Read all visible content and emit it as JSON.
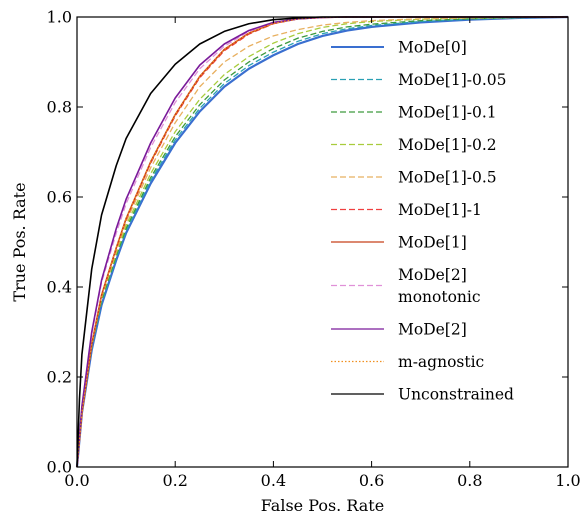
{
  "chart_data": {
    "type": "line",
    "xlabel": "False Pos. Rate",
    "ylabel": "True Pos. Rate",
    "xlim": [
      0.0,
      1.0
    ],
    "ylim": [
      0.0,
      1.0
    ],
    "xticks": [
      "0.0",
      "0.2",
      "0.4",
      "0.6",
      "0.8",
      "1.0"
    ],
    "yticks": [
      "0.0",
      "0.2",
      "0.4",
      "0.6",
      "0.8",
      "1.0"
    ],
    "grid": false,
    "legend_position": "lower-right",
    "series": [
      {
        "name": "MoDe[0]",
        "label_lines": [
          "MoDe[0]"
        ],
        "color": "#3a6fd0",
        "dash": "solid",
        "width": 2.2,
        "x": [
          0,
          0.01,
          0.03,
          0.05,
          0.08,
          0.1,
          0.15,
          0.2,
          0.25,
          0.3,
          0.35,
          0.4,
          0.45,
          0.5,
          0.55,
          0.6,
          0.7,
          0.8,
          0.9,
          1.0
        ],
        "y": [
          0,
          0.12,
          0.26,
          0.36,
          0.46,
          0.52,
          0.63,
          0.72,
          0.79,
          0.845,
          0.885,
          0.915,
          0.94,
          0.958,
          0.97,
          0.978,
          0.988,
          0.994,
          0.998,
          1.0
        ]
      },
      {
        "name": "MoDe[1]-0.05",
        "label_lines": [
          "MoDe[1]-0.05"
        ],
        "color": "#2aa0b4",
        "dash": "dashed",
        "width": 1.3,
        "x": [
          0,
          0.01,
          0.03,
          0.05,
          0.08,
          0.1,
          0.15,
          0.2,
          0.25,
          0.3,
          0.35,
          0.4,
          0.45,
          0.5,
          0.55,
          0.6,
          0.7,
          0.8,
          0.9,
          1.0
        ],
        "y": [
          0,
          0.12,
          0.265,
          0.365,
          0.465,
          0.525,
          0.637,
          0.727,
          0.797,
          0.852,
          0.892,
          0.922,
          0.946,
          0.963,
          0.974,
          0.981,
          0.99,
          0.995,
          0.998,
          1.0
        ]
      },
      {
        "name": "MoDe[1]-0.1",
        "label_lines": [
          "MoDe[1]-0.1"
        ],
        "color": "#3d9a3d",
        "dash": "dashed",
        "width": 1.3,
        "x": [
          0,
          0.01,
          0.03,
          0.05,
          0.08,
          0.1,
          0.15,
          0.2,
          0.25,
          0.3,
          0.35,
          0.4,
          0.45,
          0.5,
          0.55,
          0.6,
          0.7,
          0.8,
          0.9,
          1.0
        ],
        "y": [
          0,
          0.12,
          0.268,
          0.37,
          0.47,
          0.53,
          0.643,
          0.734,
          0.805,
          0.86,
          0.9,
          0.93,
          0.953,
          0.968,
          0.978,
          0.984,
          0.992,
          0.996,
          0.999,
          1.0
        ]
      },
      {
        "name": "MoDe[1]-0.2",
        "label_lines": [
          "MoDe[1]-0.2"
        ],
        "color": "#a8cc3c",
        "dash": "dashed",
        "width": 1.3,
        "x": [
          0,
          0.01,
          0.03,
          0.05,
          0.08,
          0.1,
          0.15,
          0.2,
          0.25,
          0.3,
          0.35,
          0.4,
          0.45,
          0.5,
          0.55,
          0.6,
          0.7,
          0.8,
          0.9,
          1.0
        ],
        "y": [
          0,
          0.12,
          0.27,
          0.375,
          0.475,
          0.537,
          0.652,
          0.745,
          0.817,
          0.872,
          0.912,
          0.942,
          0.963,
          0.977,
          0.985,
          0.99,
          0.995,
          0.998,
          0.999,
          1.0
        ]
      },
      {
        "name": "MoDe[1]-0.5",
        "label_lines": [
          "MoDe[1]-0.5"
        ],
        "color": "#e8b060",
        "dash": "dashed",
        "width": 1.3,
        "x": [
          0,
          0.01,
          0.03,
          0.05,
          0.08,
          0.1,
          0.15,
          0.2,
          0.25,
          0.3,
          0.35,
          0.4,
          0.45,
          0.5,
          0.55,
          0.6,
          0.7,
          0.8,
          0.9,
          1.0
        ],
        "y": [
          0,
          0.12,
          0.27,
          0.378,
          0.48,
          0.545,
          0.665,
          0.765,
          0.845,
          0.9,
          0.935,
          0.958,
          0.972,
          0.982,
          0.988,
          0.992,
          0.996,
          0.998,
          0.999,
          1.0
        ]
      },
      {
        "name": "MoDe[1]-1",
        "label_lines": [
          "MoDe[1]-1"
        ],
        "color": "#f04040",
        "dash": "dashed",
        "width": 1.3,
        "x": [
          0,
          0.01,
          0.03,
          0.05,
          0.08,
          0.1,
          0.15,
          0.2,
          0.25,
          0.3,
          0.35,
          0.4,
          0.45,
          0.5,
          0.55,
          0.6,
          0.7,
          0.8,
          0.9,
          1.0
        ],
        "y": [
          0,
          0.12,
          0.272,
          0.38,
          0.485,
          0.55,
          0.675,
          0.78,
          0.865,
          0.925,
          0.962,
          0.985,
          0.996,
          0.999,
          1.0,
          1.0,
          1.0,
          1.0,
          1.0,
          1.0
        ]
      },
      {
        "name": "MoDe[1]",
        "label_lines": [
          "MoDe[1]"
        ],
        "color": "#c8401a",
        "dash": "solid",
        "width": 1.6,
        "x": [
          0,
          0.01,
          0.03,
          0.05,
          0.08,
          0.1,
          0.15,
          0.2,
          0.25,
          0.3,
          0.35,
          0.4,
          0.45,
          0.5,
          0.55,
          0.6,
          0.7,
          0.8,
          0.9,
          1.0
        ],
        "y": [
          0,
          0.12,
          0.273,
          0.382,
          0.487,
          0.552,
          0.678,
          0.783,
          0.868,
          0.928,
          0.964,
          0.986,
          0.996,
          0.999,
          1.0,
          1.0,
          1.0,
          1.0,
          1.0,
          1.0
        ]
      },
      {
        "name": "MoDe[2] monotonic",
        "label_lines": [
          "MoDe[2]",
          "monotonic"
        ],
        "color": "#e090d8",
        "dash": "dashed",
        "width": 1.3,
        "x": [
          0,
          0.01,
          0.03,
          0.05,
          0.08,
          0.1,
          0.15,
          0.2,
          0.25,
          0.3,
          0.35,
          0.4,
          0.45,
          0.5,
          0.55,
          0.6,
          0.7,
          0.8,
          0.9,
          1.0
        ],
        "y": [
          0,
          0.13,
          0.295,
          0.41,
          0.52,
          0.585,
          0.71,
          0.81,
          0.885,
          0.935,
          0.968,
          0.987,
          0.996,
          0.999,
          1.0,
          1.0,
          1.0,
          1.0,
          1.0,
          1.0
        ]
      },
      {
        "name": "MoDe[2]",
        "label_lines": [
          "MoDe[2]"
        ],
        "color": "#7a1a9a",
        "dash": "solid",
        "width": 1.6,
        "x": [
          0,
          0.01,
          0.03,
          0.05,
          0.08,
          0.1,
          0.15,
          0.2,
          0.25,
          0.3,
          0.35,
          0.4,
          0.45,
          0.5,
          0.55,
          0.6,
          0.7,
          0.8,
          0.9,
          1.0
        ],
        "y": [
          0,
          0.135,
          0.3,
          0.415,
          0.53,
          0.595,
          0.72,
          0.82,
          0.893,
          0.94,
          0.97,
          0.988,
          0.996,
          0.999,
          1.0,
          1.0,
          1.0,
          1.0,
          1.0,
          1.0
        ]
      },
      {
        "name": "m-agnostic",
        "label_lines": [
          "m-agnostic"
        ],
        "color": "#f09020",
        "dash": "dotted",
        "width": 1.3,
        "x": [
          0,
          0.01,
          0.03,
          0.05,
          0.08,
          0.1,
          0.15,
          0.2,
          0.25,
          0.3,
          0.35,
          0.4,
          0.45,
          0.5,
          0.55,
          0.6,
          0.7,
          0.8,
          0.9,
          1.0
        ],
        "y": [
          0,
          0.12,
          0.273,
          0.382,
          0.487,
          0.552,
          0.678,
          0.783,
          0.868,
          0.928,
          0.964,
          0.986,
          0.996,
          0.999,
          1.0,
          1.0,
          1.0,
          1.0,
          1.0,
          1.0
        ]
      },
      {
        "name": "Unconstrained",
        "label_lines": [
          "Unconstrained"
        ],
        "color": "#000000",
        "dash": "solid",
        "width": 1.6,
        "x": [
          0,
          0.005,
          0.01,
          0.03,
          0.05,
          0.08,
          0.1,
          0.15,
          0.2,
          0.25,
          0.3,
          0.35,
          0.4,
          0.45,
          0.5,
          0.55,
          0.6,
          0.7,
          0.8,
          0.9,
          1.0
        ],
        "y": [
          0,
          0.15,
          0.25,
          0.44,
          0.56,
          0.67,
          0.73,
          0.83,
          0.895,
          0.94,
          0.968,
          0.985,
          0.994,
          0.998,
          1.0,
          1.0,
          1.0,
          1.0,
          1.0,
          1.0,
          1.0
        ]
      }
    ]
  }
}
